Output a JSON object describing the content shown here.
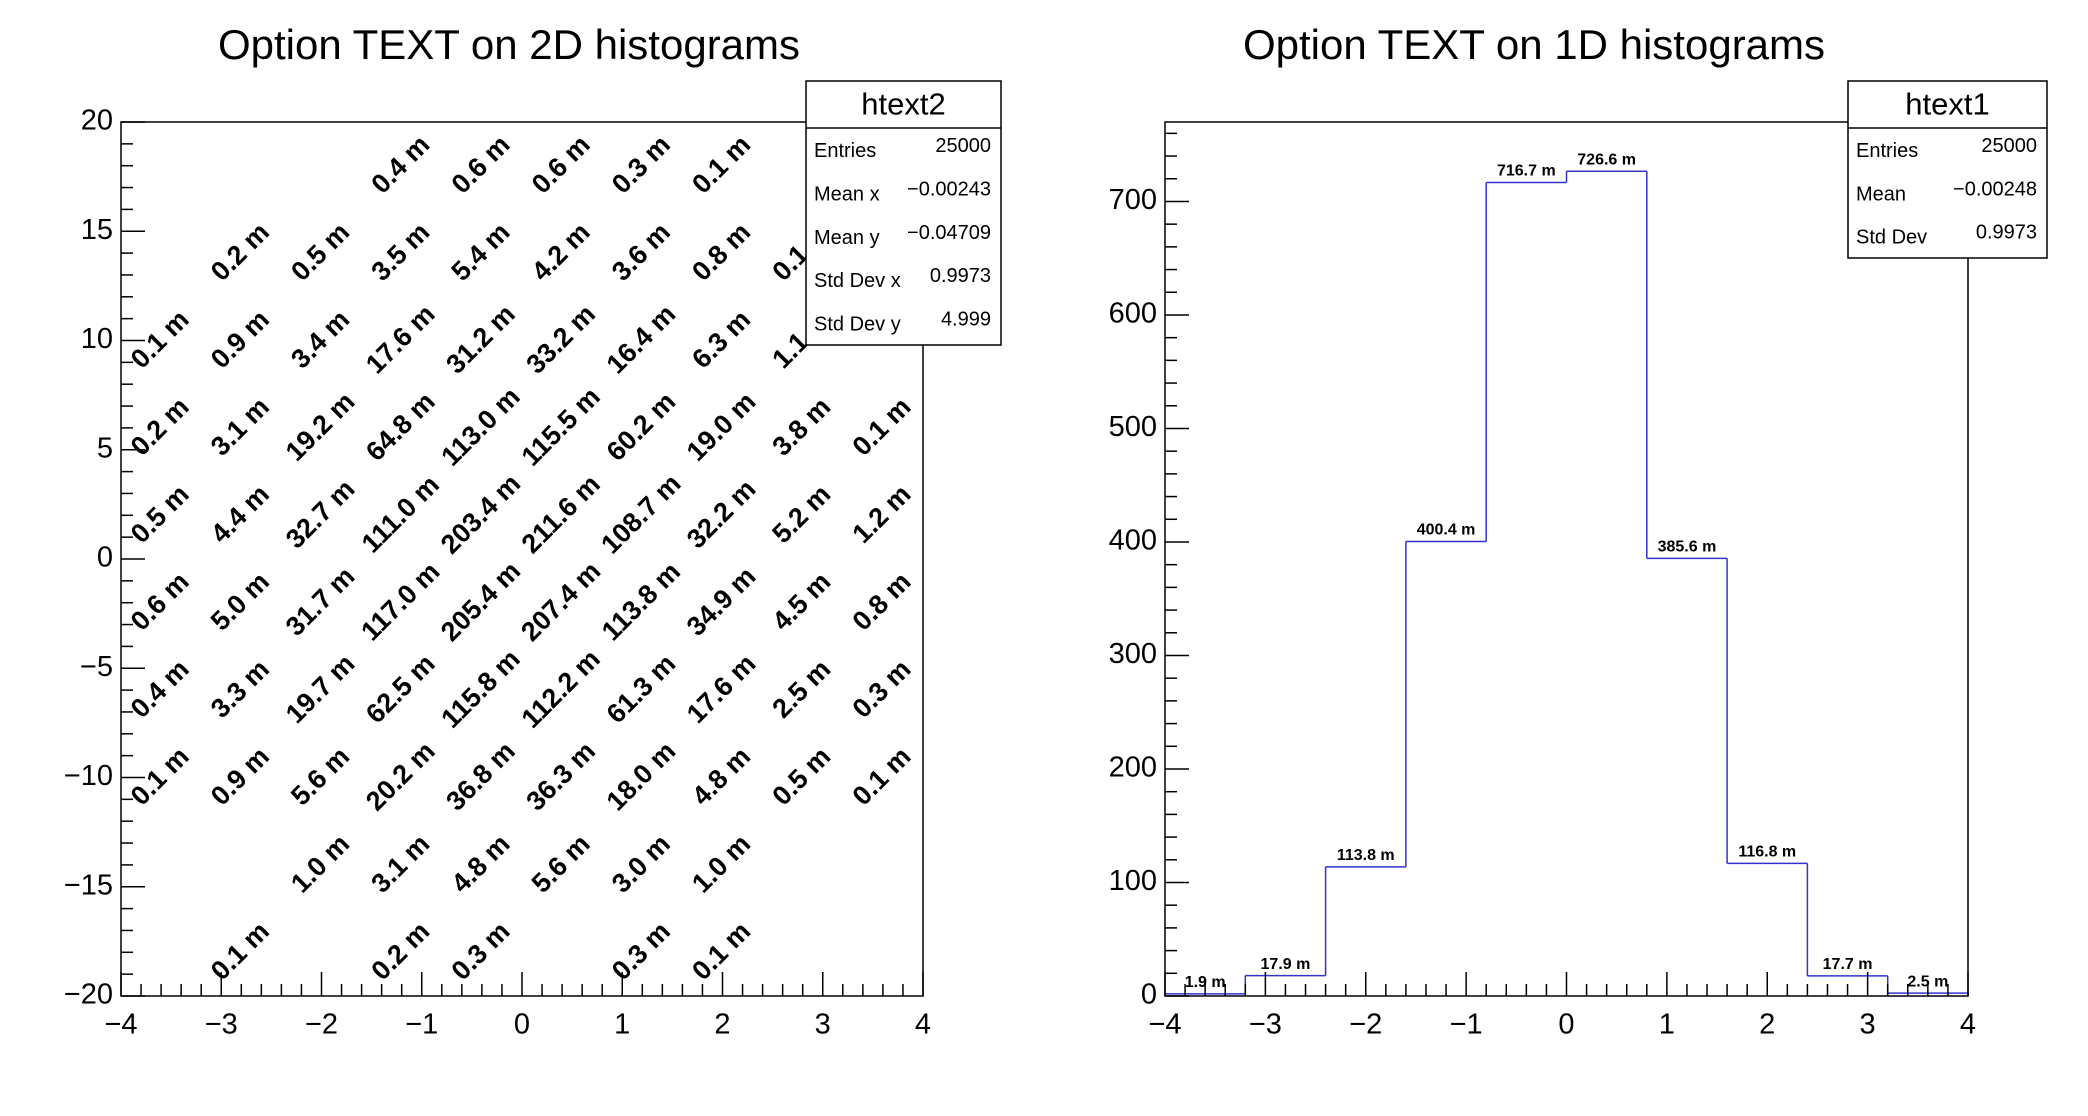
{
  "chart_data": [
    {
      "type": "text2d",
      "title": "Option TEXT on 2D histograms",
      "xlim": [
        -4,
        4
      ],
      "ylim": [
        -20,
        20
      ],
      "xticks": [
        {
          "value": -4,
          "label": "−4"
        },
        {
          "value": -3,
          "label": "−3"
        },
        {
          "value": -2,
          "label": "−2"
        },
        {
          "value": -1,
          "label": "−1"
        },
        0,
        1,
        2,
        3,
        4
      ],
      "yticks": [
        {
          "value": -20,
          "label": "−20"
        },
        {
          "value": -15,
          "label": "−15"
        },
        {
          "value": -10,
          "label": "−10"
        },
        {
          "value": -5,
          "label": "−5"
        },
        0,
        5,
        10,
        15,
        20
      ],
      "xbins": [
        -4,
        -3.2,
        -2.4,
        -1.6,
        -0.8,
        0,
        0.8,
        1.6,
        2.4,
        3.2,
        4
      ],
      "ybins": [
        -20,
        -16,
        -12,
        -8,
        -4,
        0,
        4,
        8,
        12,
        16,
        20
      ],
      "values": [
        [
          null,
          0.1,
          null,
          0.2,
          0.3,
          null,
          0.3,
          0.1,
          null,
          null
        ],
        [
          null,
          null,
          1.0,
          3.1,
          4.8,
          5.6,
          3.0,
          1.0,
          null,
          null
        ],
        [
          0.1,
          0.9,
          5.6,
          20.2,
          36.8,
          36.3,
          18.0,
          4.8,
          0.5,
          0.1
        ],
        [
          0.4,
          3.3,
          19.7,
          62.5,
          115.8,
          112.2,
          61.3,
          17.6,
          2.5,
          0.3
        ],
        [
          0.6,
          5.0,
          31.7,
          117.0,
          205.4,
          207.4,
          113.8,
          34.9,
          4.5,
          0.8
        ],
        [
          0.5,
          4.4,
          32.7,
          111.0,
          203.4,
          211.6,
          108.7,
          32.2,
          5.2,
          1.2
        ],
        [
          0.2,
          3.1,
          19.2,
          64.8,
          113.0,
          115.5,
          60.2,
          19.0,
          3.8,
          0.1
        ],
        [
          0.1,
          0.9,
          3.4,
          17.6,
          31.2,
          33.2,
          16.4,
          6.3,
          1.1,
          null
        ],
        [
          null,
          0.2,
          0.5,
          3.5,
          5.4,
          4.2,
          3.6,
          0.8,
          0.1,
          null
        ],
        [
          null,
          null,
          null,
          0.4,
          0.6,
          0.6,
          0.3,
          0.1,
          null,
          null
        ]
      ],
      "value_labels": [
        [
          null,
          "0.1 m",
          null,
          "0.2 m",
          "0.3 m",
          null,
          "0.3 m",
          "0.1 m",
          null,
          null
        ],
        [
          null,
          null,
          "1.0 m",
          "3.1 m",
          "4.8 m",
          "5.6 m",
          "3.0 m",
          "1.0 m",
          null,
          null
        ],
        [
          "0.1 m",
          "0.9 m",
          "5.6 m",
          "20.2 m",
          "36.8 m",
          "36.3 m",
          "18.0 m",
          "4.8 m",
          "0.5 m",
          "0.1 m"
        ],
        [
          "0.4 m",
          "3.3 m",
          "19.7 m",
          "62.5 m",
          "115.8 m",
          "112.2 m",
          "61.3 m",
          "17.6 m",
          "2.5 m",
          "0.3 m"
        ],
        [
          "0.6 m",
          "5.0 m",
          "31.7 m",
          "117.0 m",
          "205.4 m",
          "207.4 m",
          "113.8 m",
          "34.9 m",
          "4.5 m",
          "0.8 m"
        ],
        [
          "0.5 m",
          "4.4 m",
          "32.7 m",
          "111.0 m",
          "203.4 m",
          "211.6 m",
          "108.7 m",
          "32.2 m",
          "5.2 m",
          "1.2 m"
        ],
        [
          "0.2 m",
          "3.1 m",
          "19.2 m",
          "64.8 m",
          "113.0 m",
          "115.5 m",
          "60.2 m",
          "19.0 m",
          "3.8 m",
          "0.1 m"
        ],
        [
          "0.1 m",
          "0.9 m",
          "3.4 m",
          "17.6 m",
          "31.2 m",
          "33.2 m",
          "16.4 m",
          "6.3 m",
          "1.1 m",
          null
        ],
        [
          null,
          "0.2 m",
          "0.5 m",
          "3.5 m",
          "5.4 m",
          "4.2 m",
          "3.6 m",
          "0.8 m",
          "0.1 m",
          null
        ],
        [
          null,
          null,
          null,
          "0.4 m",
          "0.6 m",
          "0.6 m",
          "0.3 m",
          "0.1 m",
          null,
          null
        ]
      ],
      "color": "#000000",
      "stats": {
        "title": "htext2",
        "rows": [
          {
            "label": "Entries",
            "value": "25000"
          },
          {
            "label": "Mean x",
            "value": "−0.00243"
          },
          {
            "label": "Mean y",
            "value": "−0.04709"
          },
          {
            "label": "Std Dev x",
            "value": "0.9973"
          },
          {
            "label": "Std Dev y",
            "value": "4.999"
          }
        ]
      }
    },
    {
      "type": "histogram",
      "title": "Option TEXT on 1D histograms",
      "xlim": [
        -4,
        4
      ],
      "ylim": [
        0,
        770
      ],
      "xticks": [
        {
          "value": -4,
          "label": "−4"
        },
        {
          "value": -3,
          "label": "−3"
        },
        {
          "value": -2,
          "label": "−2"
        },
        {
          "value": -1,
          "label": "−1"
        },
        0,
        1,
        2,
        3,
        4
      ],
      "yticks": [
        0,
        100,
        200,
        300,
        400,
        500,
        600,
        700
      ],
      "bins": [
        -4,
        -3.2,
        -2.4,
        -1.6,
        -0.8,
        0,
        0.8,
        1.6,
        2.4,
        3.2,
        4
      ],
      "values": [
        1.9,
        17.9,
        113.8,
        400.4,
        716.7,
        726.6,
        385.6,
        116.8,
        17.7,
        2.5
      ],
      "value_labels": [
        "1.9 m",
        "17.9 m",
        "113.8 m",
        "400.4 m",
        "716.7 m",
        "726.6 m",
        "385.6 m",
        "116.8 m",
        "17.7 m",
        "2.5 m"
      ],
      "color": "#3333cc",
      "stats": {
        "title": "htext1",
        "rows": [
          {
            "label": "Entries",
            "value": "25000"
          },
          {
            "label": "Mean",
            "value": "−0.00248"
          },
          {
            "label": "Std Dev",
            "value": "0.9973"
          }
        ]
      }
    }
  ]
}
